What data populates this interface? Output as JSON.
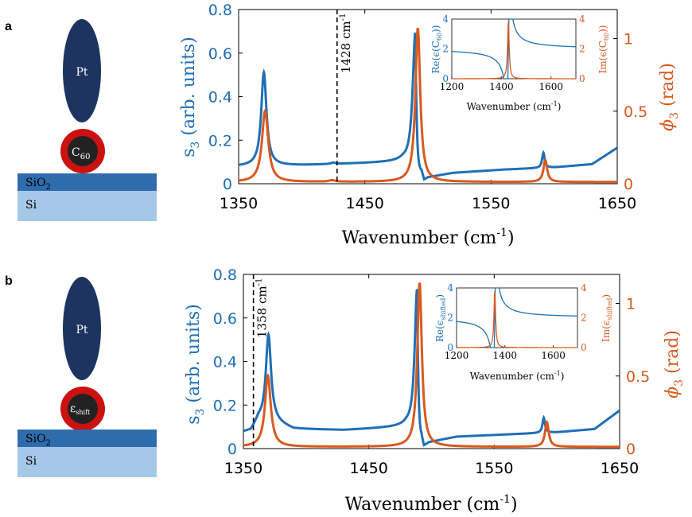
{
  "colors": {
    "s3": "#1f6fb5",
    "phi3": "#d85a1f",
    "pt": "#1d3461",
    "shell": "#cc1111",
    "core": "#222222",
    "sio2": "#2e6cad",
    "si": "#a6c8e8"
  },
  "panels": [
    {
      "letter": "a",
      "schematic": {
        "tip_label": "Pt",
        "particle_main": "C",
        "particle_sub": "60",
        "oxide_main": "SiO",
        "oxide_sub": "2",
        "substrate": "Si"
      },
      "dashed_line_label": "1428 cm",
      "dashed_line_sup": "-1"
    },
    {
      "letter": "b",
      "schematic": {
        "tip_label": "Pt",
        "particle_main": "ε",
        "particle_sub": "shift",
        "oxide_main": "SiO",
        "oxide_sub": "2",
        "substrate": "Si"
      },
      "dashed_line_label": "1358 cm",
      "dashed_line_sup": "-1"
    }
  ],
  "chart_data": [
    {
      "panel": "a",
      "type": "line",
      "xlabel": "Wavenumber (cm",
      "xlabel_sup": "-1",
      "xlabel_end": ")",
      "ylabel_left": "s",
      "ylabel_left_sub": "3",
      "ylabel_left_rest": " (arb. units)",
      "ylabel_right": "ϕ",
      "ylabel_right_sub": "3",
      "ylabel_right_rest": " (rad)",
      "xlim": [
        1350,
        1650
      ],
      "xticks": [
        1350,
        1450,
        1550,
        1650
      ],
      "ylim_left": [
        0,
        0.8
      ],
      "yticks_left": [
        "0",
        "0.2",
        "0.4",
        "0.6",
        "0.8"
      ],
      "ylim_right": [
        0,
        1.2
      ],
      "yticks_right": [
        "0",
        "0.5",
        "1"
      ],
      "dashed_line_x": 1428,
      "series": [
        {
          "name": "s3",
          "axis": "left",
          "baseline": [
            [
              1350,
              0.08
            ],
            [
              1400,
              0.085
            ],
            [
              1480,
              0.1
            ],
            [
              1495,
              0.06
            ],
            [
              1497,
              0.02
            ],
            [
              1500,
              0.03
            ],
            [
              1520,
              0.05
            ],
            [
              1560,
              0.065
            ],
            [
              1600,
              0.075
            ],
            [
              1630,
              0.09
            ],
            [
              1650,
              0.165
            ]
          ],
          "peaks": [
            {
              "x0": 1370,
              "amp": 0.43,
              "w": 2.5
            },
            {
              "x0": 1425,
              "amp": 0.006,
              "w": 2.0
            },
            {
              "x0": 1591.5,
              "amp": 0.07,
              "w": 1.2
            },
            {
              "x0": 1490,
              "amp": 0.62,
              "w": 2.5,
              "type": "fano"
            }
          ]
        },
        {
          "name": "phi3",
          "axis": "right",
          "baseline": [
            [
              1350,
              0.012
            ],
            [
              1650,
              0.012
            ]
          ],
          "peaks": [
            {
              "x0": 1371,
              "amp": 0.49,
              "w": 3.0
            },
            {
              "x0": 1424,
              "amp": 0.01,
              "w": 3.0
            },
            {
              "x0": 1492,
              "amp": 1.06,
              "w": 2.3
            },
            {
              "x0": 1593,
              "amp": 0.15,
              "w": 1.8
            }
          ]
        }
      ],
      "inset": {
        "xlabel": "Wavenumber (cm",
        "xlabel_sup": "-1",
        "xlabel_end": ")",
        "ylabel_left": "Re(ϵ(C",
        "ylabel_left_sub": "60",
        "ylabel_left_end": "))",
        "ylabel_right": "Im(ϵ(C",
        "ylabel_right_sub": "60",
        "ylabel_right_end": "))",
        "xlim": [
          1200,
          1700
        ],
        "xticks": [
          "1200",
          "1400",
          "1600"
        ],
        "xtick_values": [
          1200,
          1400,
          1600
        ],
        "ylim": [
          0,
          4
        ],
        "yticks": [
          "0",
          "2",
          "4"
        ],
        "resonance_x": 1428,
        "re_background": 2.0,
        "im_peak": 3.8
      }
    },
    {
      "panel": "b",
      "type": "line",
      "xlabel": "Wavenumber (cm",
      "xlabel_sup": "-1",
      "xlabel_end": ")",
      "ylabel_left": "s",
      "ylabel_left_sub": "3",
      "ylabel_left_rest": " (arb. units)",
      "ylabel_right": "ϕ",
      "ylabel_right_sub": "3",
      "ylabel_right_rest": " (rad)",
      "xlim": [
        1350,
        1650
      ],
      "xticks": [
        1350,
        1450,
        1550,
        1650
      ],
      "ylim_left": [
        0,
        0.8
      ],
      "yticks_left": [
        "0",
        "0.2",
        "0.4",
        "0.6",
        "0.8"
      ],
      "ylim_right": [
        0,
        1.2
      ],
      "yticks_right": [
        "0",
        "0.5",
        "1"
      ],
      "dashed_line_x": 1358,
      "series": [
        {
          "name": "s3",
          "axis": "left",
          "baseline": [
            [
              1350,
              0.075
            ],
            [
              1356,
              0.08
            ],
            [
              1362,
              0.13
            ],
            [
              1375,
              0.12
            ],
            [
              1390,
              0.09
            ],
            [
              1430,
              0.085
            ],
            [
              1480,
              0.1
            ],
            [
              1492,
              0.06
            ],
            [
              1494,
              0.015
            ],
            [
              1498,
              0.03
            ],
            [
              1520,
              0.055
            ],
            [
              1560,
              0.065
            ],
            [
              1600,
              0.075
            ],
            [
              1630,
              0.09
            ],
            [
              1650,
              0.175
            ]
          ],
          "peaks": [
            {
              "x0": 1370,
              "amp": 0.4,
              "w": 2.5
            },
            {
              "x0": 1589.5,
              "amp": 0.07,
              "w": 1.2
            },
            {
              "x0": 1488.5,
              "amp": 0.66,
              "w": 2.3,
              "type": "fano"
            }
          ]
        },
        {
          "name": "phi3",
          "axis": "right",
          "baseline": [
            [
              1350,
              0.012
            ],
            [
              1650,
              0.012
            ]
          ],
          "peaks": [
            {
              "x0": 1369.5,
              "amp": 0.49,
              "w": 2.8
            },
            {
              "x0": 1490.5,
              "amp": 1.13,
              "w": 2.2
            },
            {
              "x0": 1592,
              "amp": 0.17,
              "w": 1.8
            }
          ]
        }
      ],
      "inset": {
        "xlabel": "Wavenumber (cm",
        "xlabel_sup": "-1",
        "xlabel_end": ")",
        "ylabel_left": "Re(ϵ",
        "ylabel_left_sub": "shifted",
        "ylabel_left_end": ")",
        "ylabel_right": "Im(ϵ",
        "ylabel_right_sub": "shifted",
        "ylabel_right_end": ")",
        "xlim": [
          1200,
          1700
        ],
        "xticks": [
          "1200",
          "1400",
          "1600"
        ],
        "xtick_values": [
          1200,
          1400,
          1600
        ],
        "ylim": [
          0,
          4
        ],
        "yticks": [
          "0",
          "2",
          "4"
        ],
        "resonance_x": 1358,
        "re_background": 2.0,
        "im_peak": 3.8
      }
    }
  ]
}
